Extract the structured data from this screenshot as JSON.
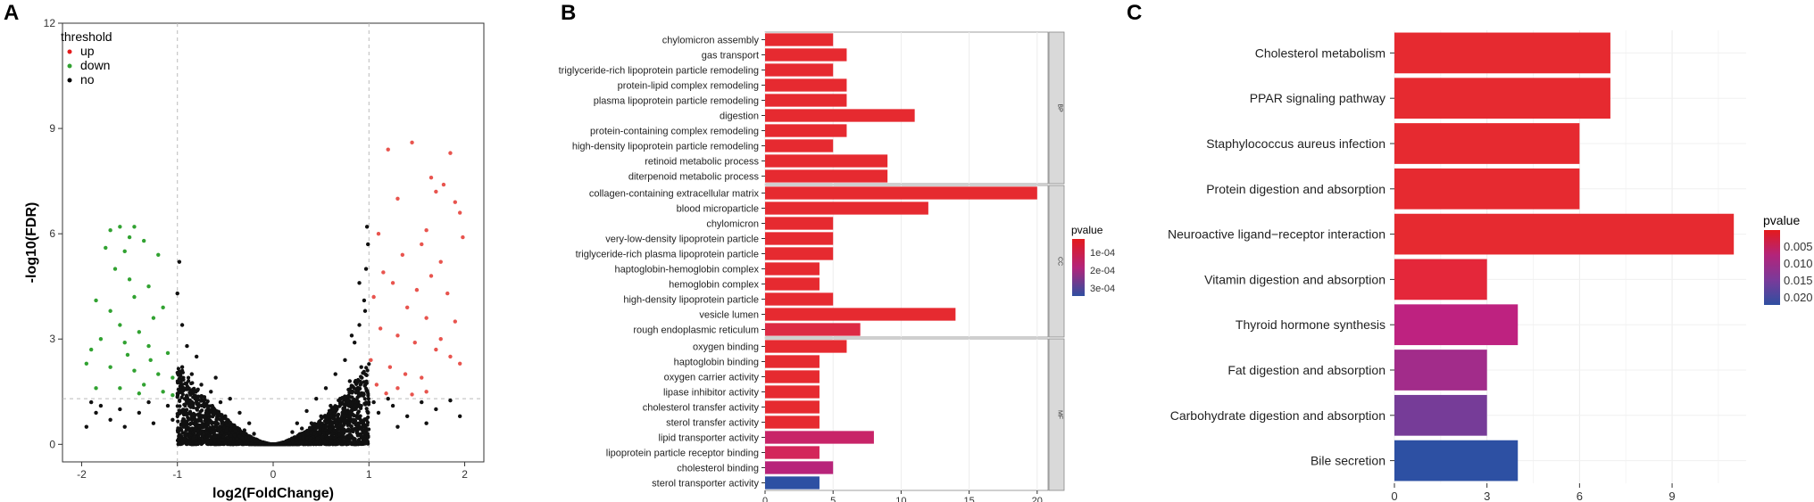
{
  "panels": {
    "a": {
      "letter": "A",
      "chart_data": {
        "type": "scatter",
        "xlabel": "log2(FoldChange)",
        "ylabel": "-log10(FDR)",
        "xlim": [
          -2.2,
          2.2
        ],
        "ylim": [
          -0.5,
          12
        ],
        "xticks": [
          -2,
          -1,
          0,
          1,
          2
        ],
        "yticks": [
          0,
          3,
          6,
          9,
          12
        ],
        "fc_cutoff": 1,
        "fdr_threshold_line": 1.3,
        "legend": {
          "title": "threshold",
          "position": "top-left",
          "entries": [
            {
              "label": "up",
              "color": "#e41a1c"
            },
            {
              "label": "down",
              "color": "#31a231"
            },
            {
              "label": "no",
              "color": "#000000"
            }
          ]
        },
        "series": [
          {
            "name": "up",
            "color": "#e8544e",
            "points": [
              [
                1.45,
                8.6
              ],
              [
                1.85,
                8.3
              ],
              [
                1.2,
                8.4
              ],
              [
                1.65,
                7.6
              ],
              [
                1.7,
                7.2
              ],
              [
                1.78,
                7.4
              ],
              [
                1.95,
                6.6
              ],
              [
                1.9,
                6.9
              ],
              [
                1.3,
                7.0
              ],
              [
                1.98,
                5.9
              ],
              [
                1.1,
                6.0
              ],
              [
                1.6,
                6.1
              ],
              [
                1.35,
                5.4
              ],
              [
                1.55,
                5.7
              ],
              [
                1.75,
                5.2
              ],
              [
                1.15,
                4.9
              ],
              [
                1.25,
                4.6
              ],
              [
                1.5,
                4.4
              ],
              [
                1.65,
                4.8
              ],
              [
                1.82,
                4.3
              ],
              [
                1.05,
                4.2
              ],
              [
                1.4,
                3.9
              ],
              [
                1.6,
                3.6
              ],
              [
                1.9,
                3.5
              ],
              [
                1.12,
                3.3
              ],
              [
                1.3,
                3.1
              ],
              [
                1.48,
                2.9
              ],
              [
                1.7,
                2.7
              ],
              [
                1.85,
                2.5
              ],
              [
                1.02,
                2.4
              ],
              [
                1.22,
                2.2
              ],
              [
                1.38,
                2.0
              ],
              [
                1.55,
                1.9
              ],
              [
                1.08,
                1.7
              ],
              [
                1.3,
                1.6
              ],
              [
                1.6,
                1.5
              ],
              [
                1.18,
                1.45
              ],
              [
                1.45,
                1.42
              ],
              [
                1.95,
                2.3
              ],
              [
                1.75,
                3.0
              ]
            ]
          },
          {
            "name": "down",
            "color": "#31a231",
            "points": [
              [
                -1.7,
                6.1
              ],
              [
                -1.6,
                6.2
              ],
              [
                -1.5,
                5.9
              ],
              [
                -1.45,
                6.2
              ],
              [
                -1.35,
                5.8
              ],
              [
                -1.75,
                5.6
              ],
              [
                -1.55,
                5.5
              ],
              [
                -1.2,
                5.4
              ],
              [
                -1.65,
                5.0
              ],
              [
                -1.5,
                4.7
              ],
              [
                -1.3,
                4.5
              ],
              [
                -1.45,
                4.2
              ],
              [
                -1.85,
                4.1
              ],
              [
                -1.7,
                3.8
              ],
              [
                -1.15,
                3.9
              ],
              [
                -1.25,
                3.6
              ],
              [
                -1.6,
                3.4
              ],
              [
                -1.4,
                3.2
              ],
              [
                -1.8,
                3.0
              ],
              [
                -1.55,
                2.9
              ],
              [
                -1.3,
                2.8
              ],
              [
                -1.1,
                2.6
              ],
              [
                -1.95,
                2.3
              ],
              [
                -1.7,
                2.2
              ],
              [
                -1.45,
                2.1
              ],
              [
                -1.2,
                2.0
              ],
              [
                -1.05,
                1.9
              ],
              [
                -1.35,
                1.7
              ],
              [
                -1.6,
                1.6
              ],
              [
                -1.15,
                1.5
              ],
              [
                -1.85,
                1.6
              ],
              [
                -1.4,
                1.45
              ],
              [
                -1.9,
                2.7
              ],
              [
                -1.05,
                1.4
              ],
              [
                -1.28,
                2.4
              ],
              [
                -1.52,
                2.55
              ]
            ]
          },
          {
            "name": "no",
            "color": "#111111",
            "points": [
              [
                -1.9,
                1.2
              ],
              [
                -1.85,
                0.9
              ],
              [
                -1.8,
                1.1
              ],
              [
                -1.7,
                0.7
              ],
              [
                -1.95,
                0.5
              ],
              [
                -1.6,
                1.0
              ],
              [
                -1.55,
                0.5
              ],
              [
                -1.4,
                0.9
              ],
              [
                -1.3,
                1.2
              ],
              [
                -1.25,
                0.6
              ],
              [
                -1.1,
                1.1
              ],
              [
                -1.05,
                0.7
              ],
              [
                -1.0,
                1.35
              ],
              [
                -0.95,
                2.2
              ],
              [
                -0.9,
                2.8
              ],
              [
                -0.9,
                1.6
              ],
              [
                -1.0,
                4.3
              ],
              [
                -0.98,
                5.2
              ],
              [
                -0.95,
                3.4
              ],
              [
                -0.85,
                2.0
              ],
              [
                -0.8,
                2.5
              ],
              [
                -0.8,
                1.2
              ],
              [
                -0.75,
                1.7
              ],
              [
                -0.7,
                0.9
              ],
              [
                -0.65,
                1.5
              ],
              [
                -0.6,
                1.9
              ],
              [
                -0.6,
                0.6
              ],
              [
                -0.55,
                1.2
              ],
              [
                -0.5,
                0.8
              ],
              [
                -0.45,
                1.3
              ],
              [
                -0.4,
                0.5
              ],
              [
                -0.35,
                0.9
              ],
              [
                -0.3,
                0.4
              ],
              [
                -0.25,
                0.6
              ],
              [
                -0.2,
                0.3
              ],
              [
                0.2,
                0.35
              ],
              [
                0.25,
                0.6
              ],
              [
                0.3,
                0.45
              ],
              [
                0.35,
                0.95
              ],
              [
                0.4,
                0.6
              ],
              [
                0.45,
                1.3
              ],
              [
                0.5,
                0.8
              ],
              [
                0.55,
                1.6
              ],
              [
                0.6,
                1.1
              ],
              [
                0.65,
                2.0
              ],
              [
                0.7,
                1.3
              ],
              [
                0.75,
                2.4
              ],
              [
                0.8,
                1.8
              ],
              [
                0.85,
                2.9
              ],
              [
                0.9,
                3.4
              ],
              [
                0.92,
                2.2
              ],
              [
                0.95,
                4.1
              ],
              [
                0.97,
                5.0
              ],
              [
                0.99,
                5.7
              ],
              [
                0.98,
                6.2
              ],
              [
                0.96,
                3.8
              ],
              [
                0.9,
                4.6
              ],
              [
                0.88,
                1.5
              ],
              [
                0.82,
                3.1
              ],
              [
                1.05,
                1.2
              ],
              [
                1.1,
                0.9
              ],
              [
                1.25,
                1.1
              ],
              [
                1.4,
                0.8
              ],
              [
                1.55,
                1.2
              ],
              [
                1.7,
                1.0
              ],
              [
                1.85,
                1.25
              ],
              [
                1.95,
                0.8
              ],
              [
                1.3,
                0.5
              ],
              [
                1.6,
                0.6
              ],
              [
                1.2,
                1.3
              ]
            ]
          }
        ]
      }
    },
    "b": {
      "letter": "B",
      "chart_data": {
        "type": "bar",
        "orientation": "horizontal",
        "xticks": [
          0,
          5,
          10,
          15,
          20
        ],
        "xlim": [
          0,
          20.8
        ],
        "legend": {
          "title": "pvalue",
          "labels": [
            "1e-04",
            "2e-04",
            "3e-04"
          ],
          "colors": [
            "#e41a1c",
            "#b3247a",
            "#2f4fa0"
          ]
        },
        "groups": [
          {
            "facet": "BP",
            "bars": [
              {
                "label": "chylomicron assembly",
                "value": 5,
                "color": "#e62a30"
              },
              {
                "label": "gas transport",
                "value": 6,
                "color": "#e62a30"
              },
              {
                "label": "triglyceride-rich lipoprotein particle remodeling",
                "value": 5,
                "color": "#e62a30"
              },
              {
                "label": "protein-lipid complex remodeling",
                "value": 6,
                "color": "#e62a30"
              },
              {
                "label": "plasma lipoprotein particle remodeling",
                "value": 6,
                "color": "#e62a30"
              },
              {
                "label": "digestion",
                "value": 11,
                "color": "#e62a30"
              },
              {
                "label": "protein-containing complex remodeling",
                "value": 6,
                "color": "#e62a30"
              },
              {
                "label": "high-density lipoprotein particle remodeling",
                "value": 5,
                "color": "#e62a30"
              },
              {
                "label": "retinoid metabolic process",
                "value": 9,
                "color": "#e62a30"
              },
              {
                "label": "diterpenoid metabolic process",
                "value": 9,
                "color": "#e62a30"
              }
            ]
          },
          {
            "facet": "CC",
            "bars": [
              {
                "label": "collagen-containing extracellular matrix",
                "value": 20,
                "color": "#e62a30"
              },
              {
                "label": "blood microparticle",
                "value": 12,
                "color": "#e62a30"
              },
              {
                "label": "chylomicron",
                "value": 5,
                "color": "#e62a30"
              },
              {
                "label": "very-low-density lipoprotein particle",
                "value": 5,
                "color": "#e62a30"
              },
              {
                "label": "triglyceride-rich plasma lipoprotein particle",
                "value": 5,
                "color": "#e62a30"
              },
              {
                "label": "haptoglobin-hemoglobin complex",
                "value": 4,
                "color": "#e62a30"
              },
              {
                "label": "hemoglobin complex",
                "value": 4,
                "color": "#e62a30"
              },
              {
                "label": "high-density lipoprotein particle",
                "value": 5,
                "color": "#e62a30"
              },
              {
                "label": "vesicle lumen",
                "value": 14,
                "color": "#e62a30"
              },
              {
                "label": "rough endoplasmic reticulum",
                "value": 7,
                "color": "#dd2a44"
              }
            ]
          },
          {
            "facet": "MF",
            "bars": [
              {
                "label": "oxygen binding",
                "value": 6,
                "color": "#e62a30"
              },
              {
                "label": "haptoglobin binding",
                "value": 4,
                "color": "#e62a30"
              },
              {
                "label": "oxygen carrier activity",
                "value": 4,
                "color": "#e62a30"
              },
              {
                "label": "lipase inhibitor activity",
                "value": 4,
                "color": "#e62a30"
              },
              {
                "label": "cholesterol transfer activity",
                "value": 4,
                "color": "#e62a30"
              },
              {
                "label": "sterol transfer activity",
                "value": 4,
                "color": "#e62a30"
              },
              {
                "label": "lipid transporter activity",
                "value": 8,
                "color": "#c82468"
              },
              {
                "label": "lipoprotein particle receptor binding",
                "value": 4,
                "color": "#d3265a"
              },
              {
                "label": "cholesterol binding",
                "value": 5,
                "color": "#b8247a"
              },
              {
                "label": "sterol transporter activity",
                "value": 4,
                "color": "#2d50a3"
              }
            ]
          }
        ]
      }
    },
    "c": {
      "letter": "C",
      "chart_data": {
        "type": "bar",
        "orientation": "horizontal",
        "xticks": [
          0,
          3,
          6,
          9
        ],
        "xlim": [
          0,
          11.4
        ],
        "legend": {
          "title": "pvalue",
          "labels": [
            "0.005",
            "0.010",
            "0.015",
            "0.020"
          ],
          "colors": [
            "#e41a1c",
            "#b3247a",
            "#7a3a9a",
            "#2f4fa0"
          ]
        },
        "bars": [
          {
            "label": "Cholesterol metabolism",
            "value": 7,
            "color": "#e62a30"
          },
          {
            "label": "PPAR signaling pathway",
            "value": 7,
            "color": "#e62a30"
          },
          {
            "label": "Staphylococcus aureus infection",
            "value": 6,
            "color": "#e62a30"
          },
          {
            "label": "Protein digestion and absorption",
            "value": 6,
            "color": "#e62a30"
          },
          {
            "label": "Neuroactive ligand−receptor interaction",
            "value": 11,
            "color": "#e62a30"
          },
          {
            "label": "Vitamin digestion and absorption",
            "value": 3,
            "color": "#e4273a"
          },
          {
            "label": "Thyroid hormone synthesis",
            "value": 4,
            "color": "#be2280"
          },
          {
            "label": "Fat digestion and absorption",
            "value": 3,
            "color": "#a22c8a"
          },
          {
            "label": "Carbohydrate digestion and absorption",
            "value": 3,
            "color": "#763c98"
          },
          {
            "label": "Bile secretion",
            "value": 4,
            "color": "#2d50a3"
          }
        ]
      }
    }
  }
}
